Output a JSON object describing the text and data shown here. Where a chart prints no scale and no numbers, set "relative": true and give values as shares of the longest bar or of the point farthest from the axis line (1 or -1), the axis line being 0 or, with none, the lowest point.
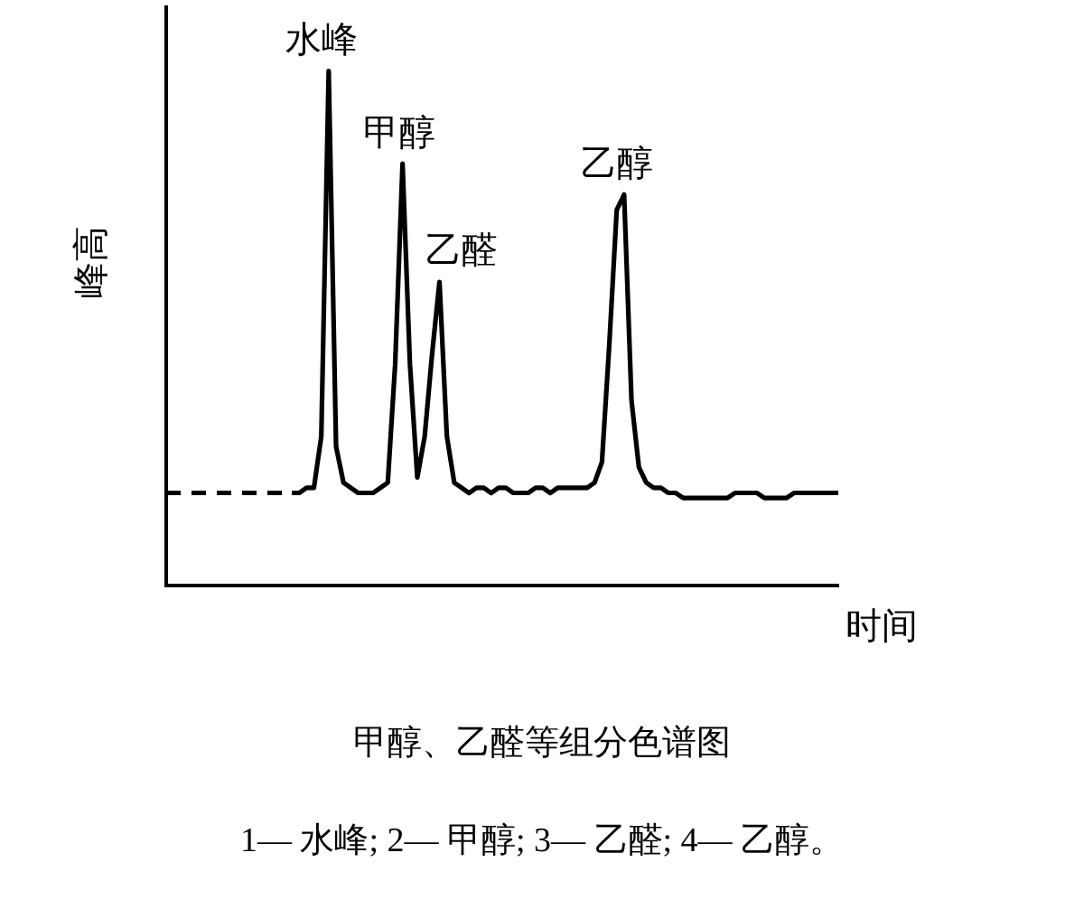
{
  "chart_data": {
    "type": "line",
    "relative": true,
    "title": "甲醇、乙醛等组分色谱图",
    "xlabel": "时间",
    "ylabel": "峰高",
    "legend": false,
    "grid": false,
    "tick_labels": false,
    "marker": "none",
    "categories": [
      null,
      null,
      null,
      null,
      null,
      null,
      null,
      null,
      null,
      null,
      null,
      null,
      null,
      null,
      null,
      null,
      null,
      null,
      null,
      null,
      null,
      null,
      null,
      null,
      null,
      null,
      null,
      null,
      null,
      null,
      null,
      null,
      null,
      null,
      null,
      null,
      null,
      null,
      null,
      null,
      null,
      null,
      null,
      null,
      null,
      null,
      null,
      null,
      null,
      null,
      null,
      null,
      null,
      null,
      null,
      null,
      null,
      null,
      null,
      null,
      null,
      null,
      null,
      null,
      null,
      null,
      null,
      null,
      null,
      null,
      null,
      null,
      null,
      null,
      null,
      null,
      null,
      null,
      null,
      null,
      null,
      null,
      null,
      null,
      null,
      null,
      null,
      null,
      null,
      null,
      null,
      null
    ],
    "series": [
      {
        "color": "#000000",
        "line_style": "dashed",
        "values": [
          0.18,
          0.18,
          0.18,
          0.18,
          0.18,
          0.18,
          0.18,
          0.18,
          0.18,
          0.18,
          0.18,
          0.18,
          0.18,
          0.18,
          0.18,
          0.18,
          0.18,
          0.18,
          null,
          null,
          null,
          null,
          null,
          null,
          null,
          null,
          null,
          null,
          null,
          null,
          null,
          null,
          null,
          null,
          null,
          null,
          null,
          null,
          null,
          null,
          null,
          null,
          null,
          null,
          null,
          null,
          null,
          null,
          null,
          null,
          null,
          null,
          null,
          null,
          null,
          null,
          null,
          null,
          null,
          null,
          null,
          null,
          null,
          null,
          null,
          null,
          null,
          null,
          null,
          null,
          null,
          null,
          null,
          null,
          null,
          null,
          null,
          null,
          null,
          null,
          null,
          null,
          null,
          null,
          null,
          null,
          null,
          null,
          null,
          null,
          null,
          null
        ]
      },
      {
        "color": "#000000",
        "line_style": "solid",
        "values": [
          null,
          null,
          null,
          null,
          null,
          null,
          null,
          null,
          null,
          null,
          null,
          null,
          null,
          null,
          null,
          null,
          null,
          0.18,
          0.18,
          0.19,
          0.19,
          0.29,
          1,
          0.27,
          0.2,
          0.19,
          0.18,
          0.18,
          0.18,
          0.19,
          0.2,
          0.43,
          0.82,
          0.43,
          0.21,
          0.29,
          0.45,
          0.59,
          0.29,
          0.2,
          0.19,
          0.18,
          0.19,
          0.19,
          0.18,
          0.19,
          0.19,
          0.18,
          0.18,
          0.18,
          0.19,
          0.19,
          0.18,
          0.19,
          0.19,
          0.19,
          0.19,
          0.19,
          0.2,
          0.24,
          0.47,
          0.73,
          0.76,
          0.36,
          0.23,
          0.2,
          0.19,
          0.19,
          0.18,
          0.18,
          0.17,
          0.17,
          0.17,
          0.17,
          0.17,
          0.17,
          0.17,
          0.18,
          0.18,
          0.18,
          0.18,
          0.17,
          0.17,
          0.17,
          0.17,
          0.18,
          0.18,
          0.18,
          0.18,
          0.18,
          0.18,
          0.18
        ]
      }
    ],
    "annotations": [
      "水峰",
      "甲醇",
      "乙醛",
      "乙醇",
      "1— 水峰; 2— 甲醇; 3— 乙醛; 4— 乙醇。"
    ]
  }
}
